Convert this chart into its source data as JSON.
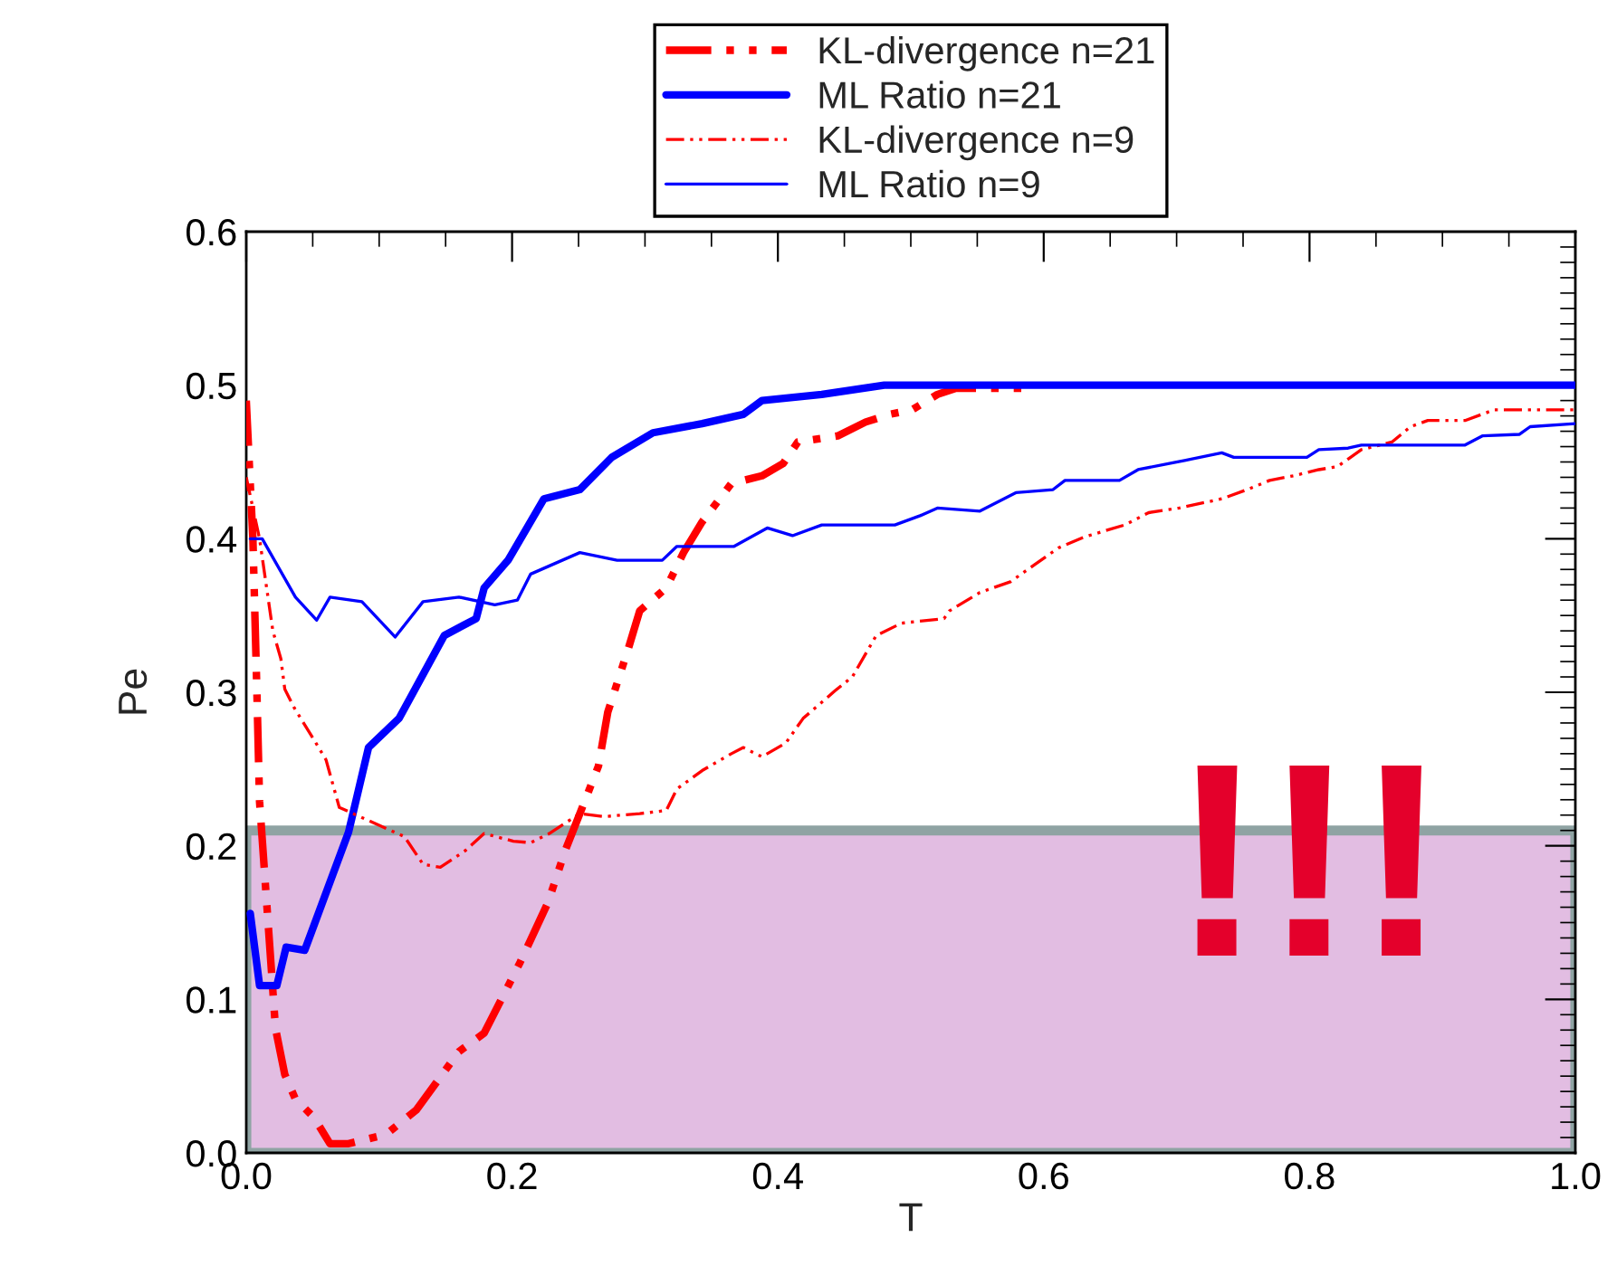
{
  "chart_data": {
    "type": "line",
    "xlabel": "T",
    "ylabel": "Pe",
    "xlim": [
      0.0,
      1.0
    ],
    "xticks": [
      {
        "value": 0.0,
        "label": "0.0"
      },
      0.2,
      0.4,
      0.6,
      0.8,
      {
        "value": 1.0,
        "label": "1.0"
      }
    ],
    "ylim": [
      0.0,
      0.6
    ],
    "yticks": [
      {
        "value": 0.0,
        "label": "0.0"
      },
      0.1,
      0.2,
      0.3,
      0.4,
      0.5,
      0.6
    ],
    "legend": "top",
    "grid": false,
    "marker": "none",
    "bands": [
      {
        "axis": "y",
        "from": 0.0,
        "to": 0.21,
        "color": "#e2bde2"
      }
    ],
    "annotations": [
      "!!!"
    ],
    "series": [
      {
        "name": "KL-divergence n=21",
        "color": "#ff0000",
        "line_style": "dashed",
        "x": [
          0.0,
          0.005,
          0.008,
          0.01,
          0.022,
          0.029,
          0.037,
          0.051,
          0.063,
          0.077,
          0.105,
          0.128,
          0.16,
          0.179,
          0.206,
          0.227,
          0.24,
          0.251,
          0.265,
          0.272,
          0.288,
          0.296,
          0.316,
          0.329,
          0.343,
          0.365,
          0.388,
          0.404,
          0.415,
          0.445,
          0.466,
          0.484,
          0.501,
          0.52,
          0.534,
          0.589
        ],
        "values": [
          0.49,
          0.4,
          0.3,
          0.229,
          0.081,
          0.051,
          0.035,
          0.023,
          0.006,
          0.006,
          0.012,
          0.028,
          0.066,
          0.078,
          0.124,
          0.163,
          0.197,
          0.221,
          0.252,
          0.287,
          0.33,
          0.353,
          0.368,
          0.391,
          0.411,
          0.436,
          0.441,
          0.449,
          0.463,
          0.467,
          0.476,
          0.481,
          0.484,
          0.494,
          0.498,
          0.498
        ]
      },
      {
        "name": "ML Ratio n=21",
        "color": "#0000ff",
        "line_style": "solid",
        "x": [
          0.003,
          0.01,
          0.023,
          0.03,
          0.044,
          0.077,
          0.092,
          0.115,
          0.149,
          0.173,
          0.179,
          0.197,
          0.224,
          0.251,
          0.275,
          0.306,
          0.343,
          0.374,
          0.388,
          0.433,
          0.48,
          1.0
        ],
        "values": [
          0.156,
          0.109,
          0.109,
          0.134,
          0.132,
          0.209,
          0.264,
          0.283,
          0.337,
          0.348,
          0.368,
          0.386,
          0.426,
          0.432,
          0.453,
          0.469,
          0.475,
          0.481,
          0.49,
          0.494,
          0.5,
          0.5
        ]
      },
      {
        "name": "KL-divergence n=9",
        "color": "#ff0000",
        "line_style": "dashed",
        "x": [
          0.0,
          0.01,
          0.02,
          0.026,
          0.029,
          0.036,
          0.051,
          0.06,
          0.07,
          0.119,
          0.133,
          0.146,
          0.165,
          0.179,
          0.201,
          0.214,
          0.228,
          0.251,
          0.269,
          0.296,
          0.316,
          0.324,
          0.343,
          0.365,
          0.374,
          0.388,
          0.406,
          0.419,
          0.443,
          0.456,
          0.474,
          0.493,
          0.525,
          0.529,
          0.552,
          0.575,
          0.593,
          0.611,
          0.63,
          0.661,
          0.679,
          0.702,
          0.734,
          0.753,
          0.77,
          0.788,
          0.807,
          0.821,
          0.839,
          0.862,
          0.876,
          0.889,
          0.917,
          0.939,
          1.0
        ],
        "values": [
          0.44,
          0.4,
          0.34,
          0.322,
          0.302,
          0.29,
          0.269,
          0.256,
          0.225,
          0.206,
          0.188,
          0.186,
          0.197,
          0.208,
          0.203,
          0.202,
          0.208,
          0.221,
          0.219,
          0.221,
          0.223,
          0.237,
          0.249,
          0.26,
          0.264,
          0.258,
          0.267,
          0.283,
          0.301,
          0.31,
          0.337,
          0.345,
          0.348,
          0.353,
          0.365,
          0.372,
          0.383,
          0.394,
          0.401,
          0.409,
          0.417,
          0.42,
          0.426,
          0.432,
          0.438,
          0.441,
          0.445,
          0.447,
          0.458,
          0.463,
          0.473,
          0.477,
          0.477,
          0.484,
          0.484
        ]
      },
      {
        "name": "ML Ratio n=9",
        "color": "#0000ff",
        "line_style": "solid",
        "x": [
          0.003,
          0.012,
          0.037,
          0.053,
          0.063,
          0.087,
          0.112,
          0.133,
          0.16,
          0.187,
          0.204,
          0.214,
          0.251,
          0.279,
          0.313,
          0.324,
          0.367,
          0.392,
          0.411,
          0.433,
          0.46,
          0.488,
          0.507,
          0.52,
          0.552,
          0.579,
          0.607,
          0.616,
          0.657,
          0.671,
          0.706,
          0.734,
          0.743,
          0.798,
          0.807,
          0.829,
          0.839,
          0.917,
          0.93,
          0.958,
          0.966,
          1.0
        ],
        "values": [
          0.4,
          0.4,
          0.362,
          0.347,
          0.362,
          0.359,
          0.336,
          0.359,
          0.362,
          0.357,
          0.36,
          0.377,
          0.391,
          0.386,
          0.386,
          0.395,
          0.395,
          0.407,
          0.402,
          0.409,
          0.409,
          0.409,
          0.415,
          0.42,
          0.418,
          0.43,
          0.432,
          0.438,
          0.438,
          0.445,
          0.451,
          0.456,
          0.453,
          0.453,
          0.458,
          0.459,
          0.461,
          0.461,
          0.467,
          0.468,
          0.473,
          0.475
        ]
      }
    ]
  }
}
